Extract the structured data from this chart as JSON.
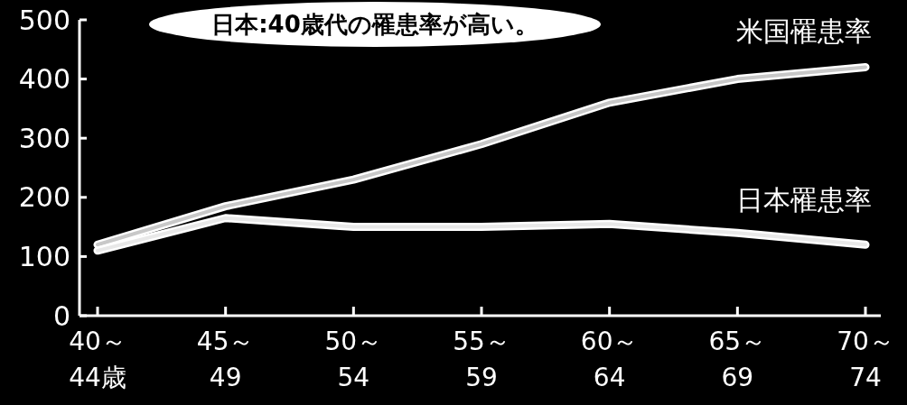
{
  "chart_data": {
    "type": "line",
    "categories": [
      "40～\n44歳",
      "45～\n49",
      "50～\n54",
      "55～\n59",
      "60～\n64",
      "65～\n69",
      "70～\n74"
    ],
    "series": [
      {
        "name": "米国罹患率",
        "color": "#c8c8c8",
        "values": [
          120,
          185,
          230,
          290,
          360,
          400,
          420
        ]
      },
      {
        "name": "日本罹患率",
        "color": "#e8e8e8",
        "values": [
          110,
          165,
          150,
          150,
          155,
          140,
          120
        ]
      }
    ],
    "ylim": [
      0,
      500
    ],
    "yticks": [
      0,
      100,
      200,
      300,
      400,
      500
    ],
    "grid": false,
    "marker": "none",
    "line_style": "solid",
    "annotations": [
      "日本:40歳代の罹患率が高い。"
    ]
  }
}
